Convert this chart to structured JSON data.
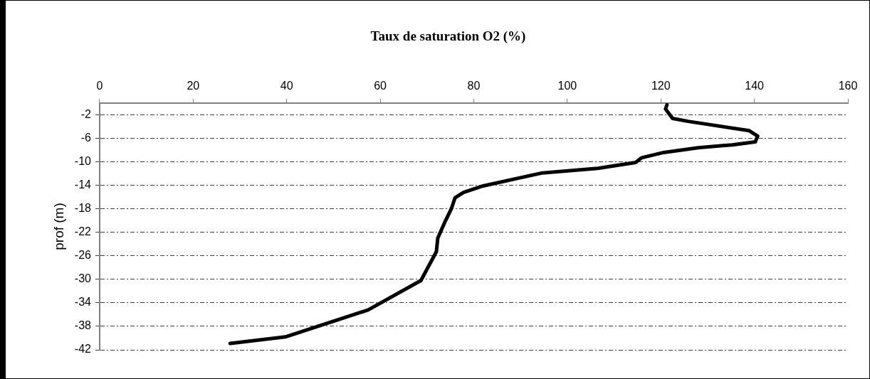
{
  "chart_data": {
    "type": "line",
    "title": "Taux de saturation O2 (%)",
    "ylabel": "prof (m)",
    "x": [
      121.3,
      121,
      122.5,
      125.8,
      138.9,
      140.7,
      140.2,
      135.3,
      128,
      120.6,
      115.9,
      114.6,
      106.5,
      94.5,
      82,
      77.8,
      76,
      75.2,
      73.9,
      72.3,
      72,
      68.7,
      57.4,
      39.7,
      27.9
    ],
    "series": [
      {
        "color": "#000000",
        "values": [
          -0.3,
          -1,
          -2.6,
          -3.1,
          -4.7,
          -5.6,
          -6.6,
          -7.1,
          -7.6,
          -8.4,
          -9.3,
          -10.1,
          -11.1,
          -11.9,
          -14.1,
          -15.2,
          -16.1,
          -18,
          -20.1,
          -23,
          -25.3,
          -30.2,
          -35.2,
          -39.8,
          -40.9
        ]
      }
    ],
    "xlim": [
      0,
      160
    ],
    "xticks": [
      0,
      20,
      40,
      60,
      80,
      100,
      120,
      140,
      160
    ],
    "ylim": [
      -42,
      0
    ],
    "yticks": [
      -42,
      -38,
      -34,
      -30,
      -26,
      -22,
      -18,
      -14,
      -10,
      -6,
      -2
    ],
    "grid": "y",
    "legend": false,
    "marker": "none",
    "line_style": "solid"
  }
}
